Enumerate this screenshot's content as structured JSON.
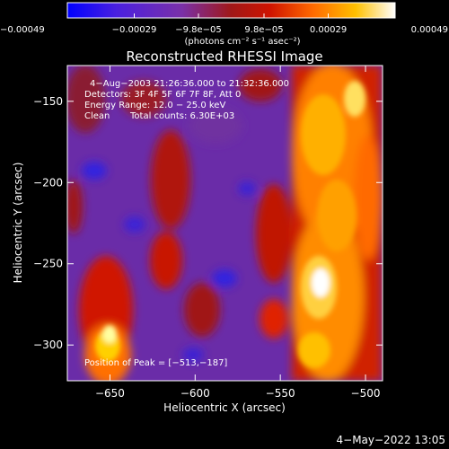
{
  "chart_data": {
    "type": "heatmap",
    "title": "Reconstructed RHESSI Image",
    "xlabel": "Heliocentric X (arcsec)",
    "ylabel": "Heliocentric Y (arcsec)",
    "xlim": [
      -675,
      -490
    ],
    "ylim": [
      -322,
      -128
    ],
    "x_ticks": [
      {
        "value": -650,
        "label": "−650"
      },
      {
        "value": -600,
        "label": "−600"
      },
      {
        "value": -550,
        "label": "−550"
      },
      {
        "value": -500,
        "label": "−500"
      }
    ],
    "y_ticks": [
      {
        "value": -150,
        "label": "−150"
      },
      {
        "value": -200,
        "label": "−200"
      },
      {
        "value": -250,
        "label": "−250"
      },
      {
        "value": -300,
        "label": "−300"
      }
    ],
    "colorbar": {
      "range": [
        -0.00049,
        0.00049
      ],
      "tick_values": [
        -0.00049,
        -0.00029,
        -9.8e-05,
        9.8e-05,
        0.00029,
        0.00049
      ],
      "tick_labels": [
        "−0.00049",
        "−0.00029",
        "−9.8e−05",
        "9.8e−05",
        "0.00029",
        "0.00049"
      ],
      "unit_label": "(photons cm⁻² s⁻¹ asec⁻²)",
      "colors": [
        "#0000ff",
        "#5a28d6",
        "#7030a0",
        "#b01010",
        "#e02000",
        "#ff8000",
        "#ffd000",
        "#ffffff"
      ]
    },
    "annotations": [
      "4−Aug−2003 21:26:36.000 to 21:32:36.000",
      "Detectors: 3F 4F 5F 6F 7F 8F, Att 0",
      "Energy Range: 12.0 − 25.0 keV",
      "Clean",
      "Total counts: 6.30E+03"
    ],
    "peak_label": "Position of Peak = [−513,−187]",
    "peak_position": [
      -513,
      -187
    ],
    "grid": false,
    "legend": "colorbar-top"
  },
  "footer": {
    "timestamp": "4−May−2022 13:05"
  }
}
